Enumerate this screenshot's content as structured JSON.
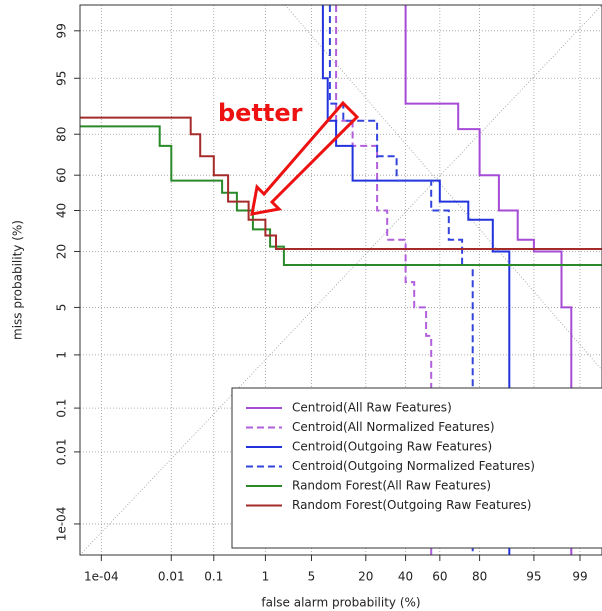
{
  "chart_data": {
    "type": "det",
    "xlabel": "false alarm probability (%)",
    "ylabel": "miss probability (%)",
    "annotation": "better",
    "scale": "probit",
    "grid": true,
    "legend": "bottom-right",
    "xlim": [
      2e-05,
      99.6
    ],
    "ylim": [
      1e-05,
      99.65
    ],
    "xticks": [
      {
        "value": 0.0001,
        "label": "1e-04"
      },
      0.01,
      0.1,
      1,
      5,
      20,
      40,
      60,
      80,
      95,
      99
    ],
    "yticks": [
      {
        "value": 0.0001,
        "label": "1e-04"
      },
      0.01,
      0.1,
      1,
      5,
      20,
      40,
      60,
      80,
      95,
      99
    ],
    "series": [
      {
        "name": "Centroid(All Raw Features)",
        "color": "#a64bd6",
        "dashed": false,
        "x": [
          40,
          40,
          70,
          70,
          80,
          80,
          87,
          87,
          92,
          92,
          95,
          95,
          98,
          98,
          98.6,
          98.6
        ],
        "values": [
          99.65,
          90,
          90,
          82,
          82,
          60,
          60,
          40,
          40,
          25,
          25,
          20,
          20,
          5,
          5,
          1e-05
        ]
      },
      {
        "name": "Centroid(All Normalized Features)",
        "color": "#b25fdc",
        "dashed": true,
        "x": [
          10,
          10,
          15,
          15,
          25,
          25,
          30,
          30,
          40,
          40,
          45,
          45,
          52,
          52,
          55,
          55
        ],
        "values": [
          99.65,
          85,
          85,
          75,
          75,
          40,
          40,
          25,
          25,
          10,
          10,
          5,
          5,
          2,
          2,
          1e-05
        ]
      },
      {
        "name": "Centroid(Outgoing Raw Features)",
        "color": "#2233dd",
        "dashed": false,
        "x": [
          7,
          7,
          8,
          8,
          10,
          10,
          15,
          15,
          60,
          60,
          75,
          75,
          85,
          85,
          90,
          90
        ],
        "values": [
          99.65,
          95,
          95,
          85,
          85,
          75,
          75,
          57,
          57,
          45,
          45,
          35,
          35,
          20,
          20,
          1e-05
        ]
      },
      {
        "name": "Centroid(Outgoing Normalized Features)",
        "color": "#3344dd",
        "dashed": true,
        "x": [
          8.5,
          8.5,
          12,
          12,
          25,
          25,
          35,
          35,
          55,
          55,
          65,
          65,
          72,
          72,
          77,
          77
        ],
        "values": [
          99.65,
          90,
          90,
          85,
          85,
          70,
          70,
          57,
          57,
          40,
          40,
          25,
          25,
          15,
          15,
          1e-05
        ]
      },
      {
        "name": "Random Forest(All Raw Features)",
        "color": "#2a8a2a",
        "dashed": false,
        "x": [
          2e-05,
          0.005,
          0.005,
          0.01,
          0.01,
          0.15,
          0.15,
          0.3,
          0.3,
          0.6,
          0.6,
          1.2,
          1.2,
          2,
          2,
          99.6
        ],
        "values": [
          83,
          83,
          75,
          75,
          57,
          57,
          50,
          50,
          40,
          40,
          30,
          30,
          22,
          22,
          15,
          15
        ]
      },
      {
        "name": "Random Forest(Outgoing Raw Features)",
        "color": "#a52a2a",
        "dashed": false,
        "x": [
          2e-05,
          0.03,
          0.03,
          0.05,
          0.05,
          0.1,
          0.1,
          0.2,
          0.2,
          0.5,
          0.5,
          1,
          1,
          1.5,
          1.5,
          99.6
        ],
        "values": [
          86,
          86,
          80,
          80,
          70,
          70,
          60,
          60,
          45,
          45,
          35,
          35,
          27,
          27,
          21,
          21
        ]
      }
    ]
  }
}
